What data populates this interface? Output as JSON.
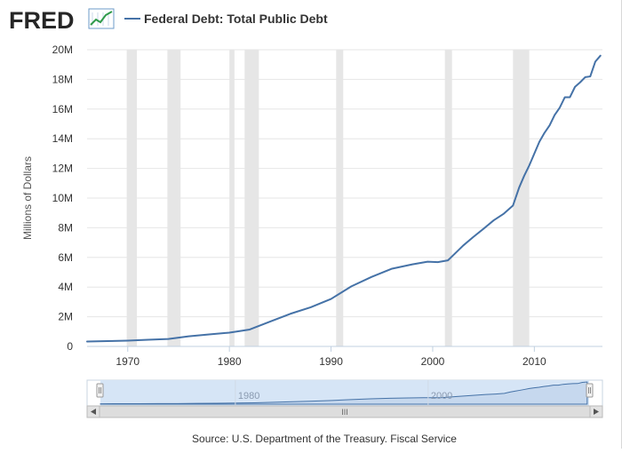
{
  "header": {
    "logo_text": "FRED",
    "series_title": "Federal Debt: Total Public Debt"
  },
  "source": "Source: U.S. Department of the Treasury. Fiscal Service",
  "colors": {
    "line": "#4572a7",
    "recession": "#e6e6e6",
    "grid": "#e6e6e6",
    "navigator_fill": "#c6d8ee",
    "navigator_selected": "#d6e5f6"
  },
  "chart_data": {
    "type": "line",
    "title": "",
    "xlabel": "",
    "ylabel": "Millions of Dollars",
    "xlim": [
      1966.0,
      2016.7
    ],
    "ylim": [
      0,
      20000000
    ],
    "grid": "horizontal",
    "legend": "top-left",
    "x_ticks": [
      {
        "value": 1970,
        "label": "1970"
      },
      {
        "value": 1980,
        "label": "1980"
      },
      {
        "value": 1990,
        "label": "1990"
      },
      {
        "value": 2000,
        "label": "2000"
      },
      {
        "value": 2010,
        "label": "2010"
      }
    ],
    "y_ticks": [
      {
        "value": 0,
        "label": "0"
      },
      {
        "value": 2000000,
        "label": "2M"
      },
      {
        "value": 4000000,
        "label": "4M"
      },
      {
        "value": 6000000,
        "label": "6M"
      },
      {
        "value": 8000000,
        "label": "8M"
      },
      {
        "value": 10000000,
        "label": "10M"
      },
      {
        "value": 12000000,
        "label": "12M"
      },
      {
        "value": 14000000,
        "label": "14M"
      },
      {
        "value": 16000000,
        "label": "16M"
      },
      {
        "value": 18000000,
        "label": "18M"
      },
      {
        "value": 20000000,
        "label": "20M"
      }
    ],
    "recessions": [
      [
        1969.9,
        1970.9
      ],
      [
        1973.9,
        1975.2
      ],
      [
        1980.0,
        1980.5
      ],
      [
        1981.5,
        1982.9
      ],
      [
        1990.5,
        1991.2
      ],
      [
        2001.2,
        2001.9
      ],
      [
        2007.9,
        2009.5
      ]
    ],
    "series": [
      {
        "name": "Federal Debt: Total Public Debt",
        "x": [
          1966.0,
          1968.0,
          1970.0,
          1972.0,
          1974.0,
          1976.0,
          1978.0,
          1980.0,
          1982.0,
          1984.0,
          1986.0,
          1988.0,
          1990.0,
          1992.0,
          1994.0,
          1996.0,
          1998.0,
          1999.5,
          2000.5,
          2001.5,
          2003.0,
          2004.0,
          2005.0,
          2006.0,
          2007.0,
          2007.9,
          2008.5,
          2009.0,
          2009.5,
          2010.0,
          2010.5,
          2011.0,
          2011.5,
          2012.0,
          2012.5,
          2013.0,
          2013.5,
          2014.0,
          2014.5,
          2015.0,
          2015.5,
          2016.0,
          2016.5
        ],
        "values": [
          330000,
          360000,
          390000,
          450000,
          500000,
          680000,
          810000,
          930000,
          1140000,
          1670000,
          2200000,
          2640000,
          3200000,
          4050000,
          4690000,
          5240000,
          5530000,
          5710000,
          5680000,
          5800000,
          6800000,
          7380000,
          7930000,
          8500000,
          8950000,
          9500000,
          10700000,
          11500000,
          12200000,
          13000000,
          13800000,
          14400000,
          14900000,
          15600000,
          16100000,
          16800000,
          16800000,
          17500000,
          17800000,
          18150000,
          18200000,
          19200000,
          19600000
        ]
      }
    ]
  },
  "navigator": {
    "ticks": [
      {
        "value": 1980,
        "label": "1980"
      },
      {
        "value": 2000,
        "label": "2000"
      }
    ],
    "scroll_label": "III"
  }
}
